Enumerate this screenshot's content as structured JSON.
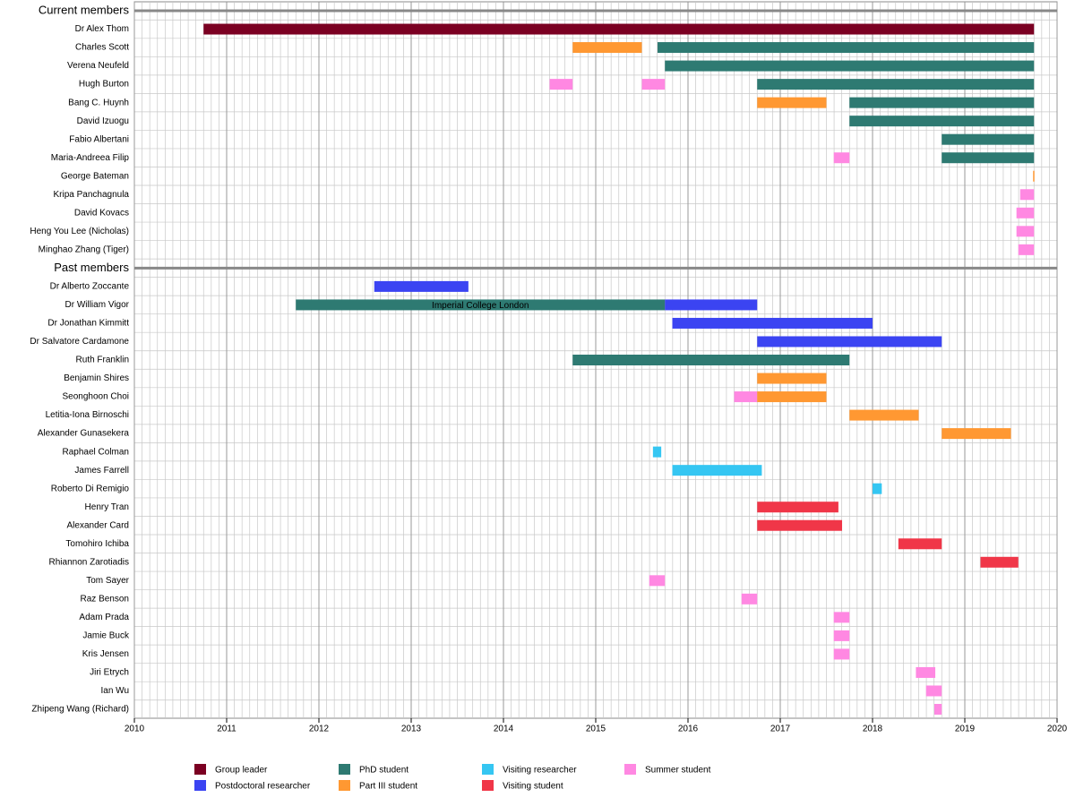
{
  "chart_data": {
    "type": "gantt",
    "xlim": [
      2010,
      2020
    ],
    "xticks": [
      2010,
      2011,
      2012,
      2013,
      2014,
      2015,
      2016,
      2017,
      2018,
      2019,
      2020
    ],
    "minor_ticks_per_major": 12,
    "grid": true,
    "legend": "bottom",
    "series": [
      {
        "name": "Group leader",
        "color": "#7b0022"
      },
      {
        "name": "Postdoctoral researcher",
        "color": "#3b44f2"
      },
      {
        "name": "PhD student",
        "color": "#2e7a72"
      },
      {
        "name": "Part III student",
        "color": "#ff9832"
      },
      {
        "name": "Visiting researcher",
        "color": "#35c6f2"
      },
      {
        "name": "Visiting student",
        "color": "#f03648"
      },
      {
        "name": "Summer student",
        "color": "#ff88e2"
      }
    ],
    "groups": [
      {
        "title": "Current members",
        "rows": [
          {
            "name": "Dr Alex Thom",
            "segments": [
              {
                "series": 0,
                "start": 2010.75,
                "end": 2019.75
              }
            ]
          },
          {
            "name": "Charles Scott",
            "segments": [
              {
                "series": 3,
                "start": 2014.75,
                "end": 2015.5
              },
              {
                "series": 2,
                "start": 2015.67,
                "end": 2019.75
              }
            ]
          },
          {
            "name": "Verena Neufeld",
            "segments": [
              {
                "series": 2,
                "start": 2015.75,
                "end": 2019.75
              }
            ]
          },
          {
            "name": "Hugh Burton",
            "segments": [
              {
                "series": 6,
                "start": 2014.5,
                "end": 2014.75
              },
              {
                "series": 6,
                "start": 2015.5,
                "end": 2015.75
              },
              {
                "series": 2,
                "start": 2016.75,
                "end": 2019.75
              }
            ]
          },
          {
            "name": "Bang C. Huynh",
            "segments": [
              {
                "series": 3,
                "start": 2016.75,
                "end": 2017.5
              },
              {
                "series": 2,
                "start": 2017.75,
                "end": 2019.75
              }
            ]
          },
          {
            "name": "David Izuogu",
            "segments": [
              {
                "series": 2,
                "start": 2017.75,
                "end": 2019.75
              }
            ]
          },
          {
            "name": "Fabio Albertani",
            "segments": [
              {
                "series": 2,
                "start": 2018.75,
                "end": 2019.75
              }
            ]
          },
          {
            "name": "Maria-Andreea Filip",
            "segments": [
              {
                "series": 6,
                "start": 2017.58,
                "end": 2017.75
              },
              {
                "series": 2,
                "start": 2018.75,
                "end": 2019.75
              }
            ]
          },
          {
            "name": "George Bateman",
            "segments": [
              {
                "series": 3,
                "start": 2019.74,
                "end": 2019.75
              }
            ]
          },
          {
            "name": "Kripa Panchagnula",
            "segments": [
              {
                "series": 6,
                "start": 2019.6,
                "end": 2019.75
              }
            ]
          },
          {
            "name": "David Kovacs",
            "segments": [
              {
                "series": 6,
                "start": 2019.56,
                "end": 2019.75
              }
            ]
          },
          {
            "name": "Heng You Lee (Nicholas)",
            "segments": [
              {
                "series": 6,
                "start": 2019.56,
                "end": 2019.75
              }
            ]
          },
          {
            "name": "Minghao Zhang (Tiger)",
            "segments": [
              {
                "series": 6,
                "start": 2019.58,
                "end": 2019.75
              }
            ]
          }
        ]
      },
      {
        "title": "Past members",
        "rows": [
          {
            "name": "Dr Alberto Zoccante",
            "segments": [
              {
                "series": 1,
                "start": 2012.6,
                "end": 2013.62
              }
            ]
          },
          {
            "name": "Dr William Vigor",
            "segments": [
              {
                "series": 2,
                "start": 2011.75,
                "end": 2015.75,
                "label": "Imperial College London"
              },
              {
                "series": 1,
                "start": 2015.75,
                "end": 2016.75
              }
            ]
          },
          {
            "name": "Dr Jonathan Kimmitt",
            "segments": [
              {
                "series": 1,
                "start": 2015.83,
                "end": 2018.0
              }
            ]
          },
          {
            "name": "Dr Salvatore Cardamone",
            "segments": [
              {
                "series": 1,
                "start": 2016.75,
                "end": 2018.75
              }
            ]
          },
          {
            "name": "Ruth Franklin",
            "segments": [
              {
                "series": 2,
                "start": 2014.75,
                "end": 2017.75
              }
            ]
          },
          {
            "name": "Benjamin Shires",
            "segments": [
              {
                "series": 3,
                "start": 2016.75,
                "end": 2017.5
              }
            ]
          },
          {
            "name": "Seonghoon Choi",
            "segments": [
              {
                "series": 6,
                "start": 2016.5,
                "end": 2016.75
              },
              {
                "series": 3,
                "start": 2016.75,
                "end": 2017.5
              }
            ]
          },
          {
            "name": "Letitia-Iona Birnoschi",
            "segments": [
              {
                "series": 3,
                "start": 2017.75,
                "end": 2018.5
              }
            ]
          },
          {
            "name": "Alexander Gunasekera",
            "segments": [
              {
                "series": 3,
                "start": 2018.75,
                "end": 2019.5
              }
            ]
          },
          {
            "name": "Raphael Colman",
            "segments": [
              {
                "series": 4,
                "start": 2015.62,
                "end": 2015.71
              }
            ]
          },
          {
            "name": "James Farrell",
            "segments": [
              {
                "series": 4,
                "start": 2015.83,
                "end": 2016.8
              }
            ]
          },
          {
            "name": "Roberto Di Remigio",
            "segments": [
              {
                "series": 4,
                "start": 2018.0,
                "end": 2018.1
              }
            ]
          },
          {
            "name": "Henry Tran",
            "segments": [
              {
                "series": 5,
                "start": 2016.75,
                "end": 2017.63
              }
            ]
          },
          {
            "name": "Alexander Card",
            "segments": [
              {
                "series": 5,
                "start": 2016.75,
                "end": 2017.67
              }
            ]
          },
          {
            "name": "Tomohiro Ichiba",
            "segments": [
              {
                "series": 5,
                "start": 2018.28,
                "end": 2018.75
              }
            ]
          },
          {
            "name": "Rhiannon Zarotiadis",
            "segments": [
              {
                "series": 5,
                "start": 2019.17,
                "end": 2019.58
              }
            ]
          },
          {
            "name": "Tom Sayer",
            "segments": [
              {
                "series": 6,
                "start": 2015.58,
                "end": 2015.75
              }
            ]
          },
          {
            "name": "Raz Benson",
            "segments": [
              {
                "series": 6,
                "start": 2016.58,
                "end": 2016.75
              }
            ]
          },
          {
            "name": "Adam Prada",
            "segments": [
              {
                "series": 6,
                "start": 2017.58,
                "end": 2017.75
              }
            ]
          },
          {
            "name": "Jamie Buck",
            "segments": [
              {
                "series": 6,
                "start": 2017.58,
                "end": 2017.75
              }
            ]
          },
          {
            "name": "Kris Jensen",
            "segments": [
              {
                "series": 6,
                "start": 2017.58,
                "end": 2017.75
              }
            ]
          },
          {
            "name": "Jiri Etrych",
            "segments": [
              {
                "series": 6,
                "start": 2018.47,
                "end": 2018.68
              }
            ]
          },
          {
            "name": "Ian Wu",
            "segments": [
              {
                "series": 6,
                "start": 2018.58,
                "end": 2018.75
              }
            ]
          },
          {
            "name": "Zhipeng Wang (Richard)",
            "segments": [
              {
                "series": 6,
                "start": 2018.67,
                "end": 2018.75
              }
            ]
          }
        ]
      }
    ]
  }
}
